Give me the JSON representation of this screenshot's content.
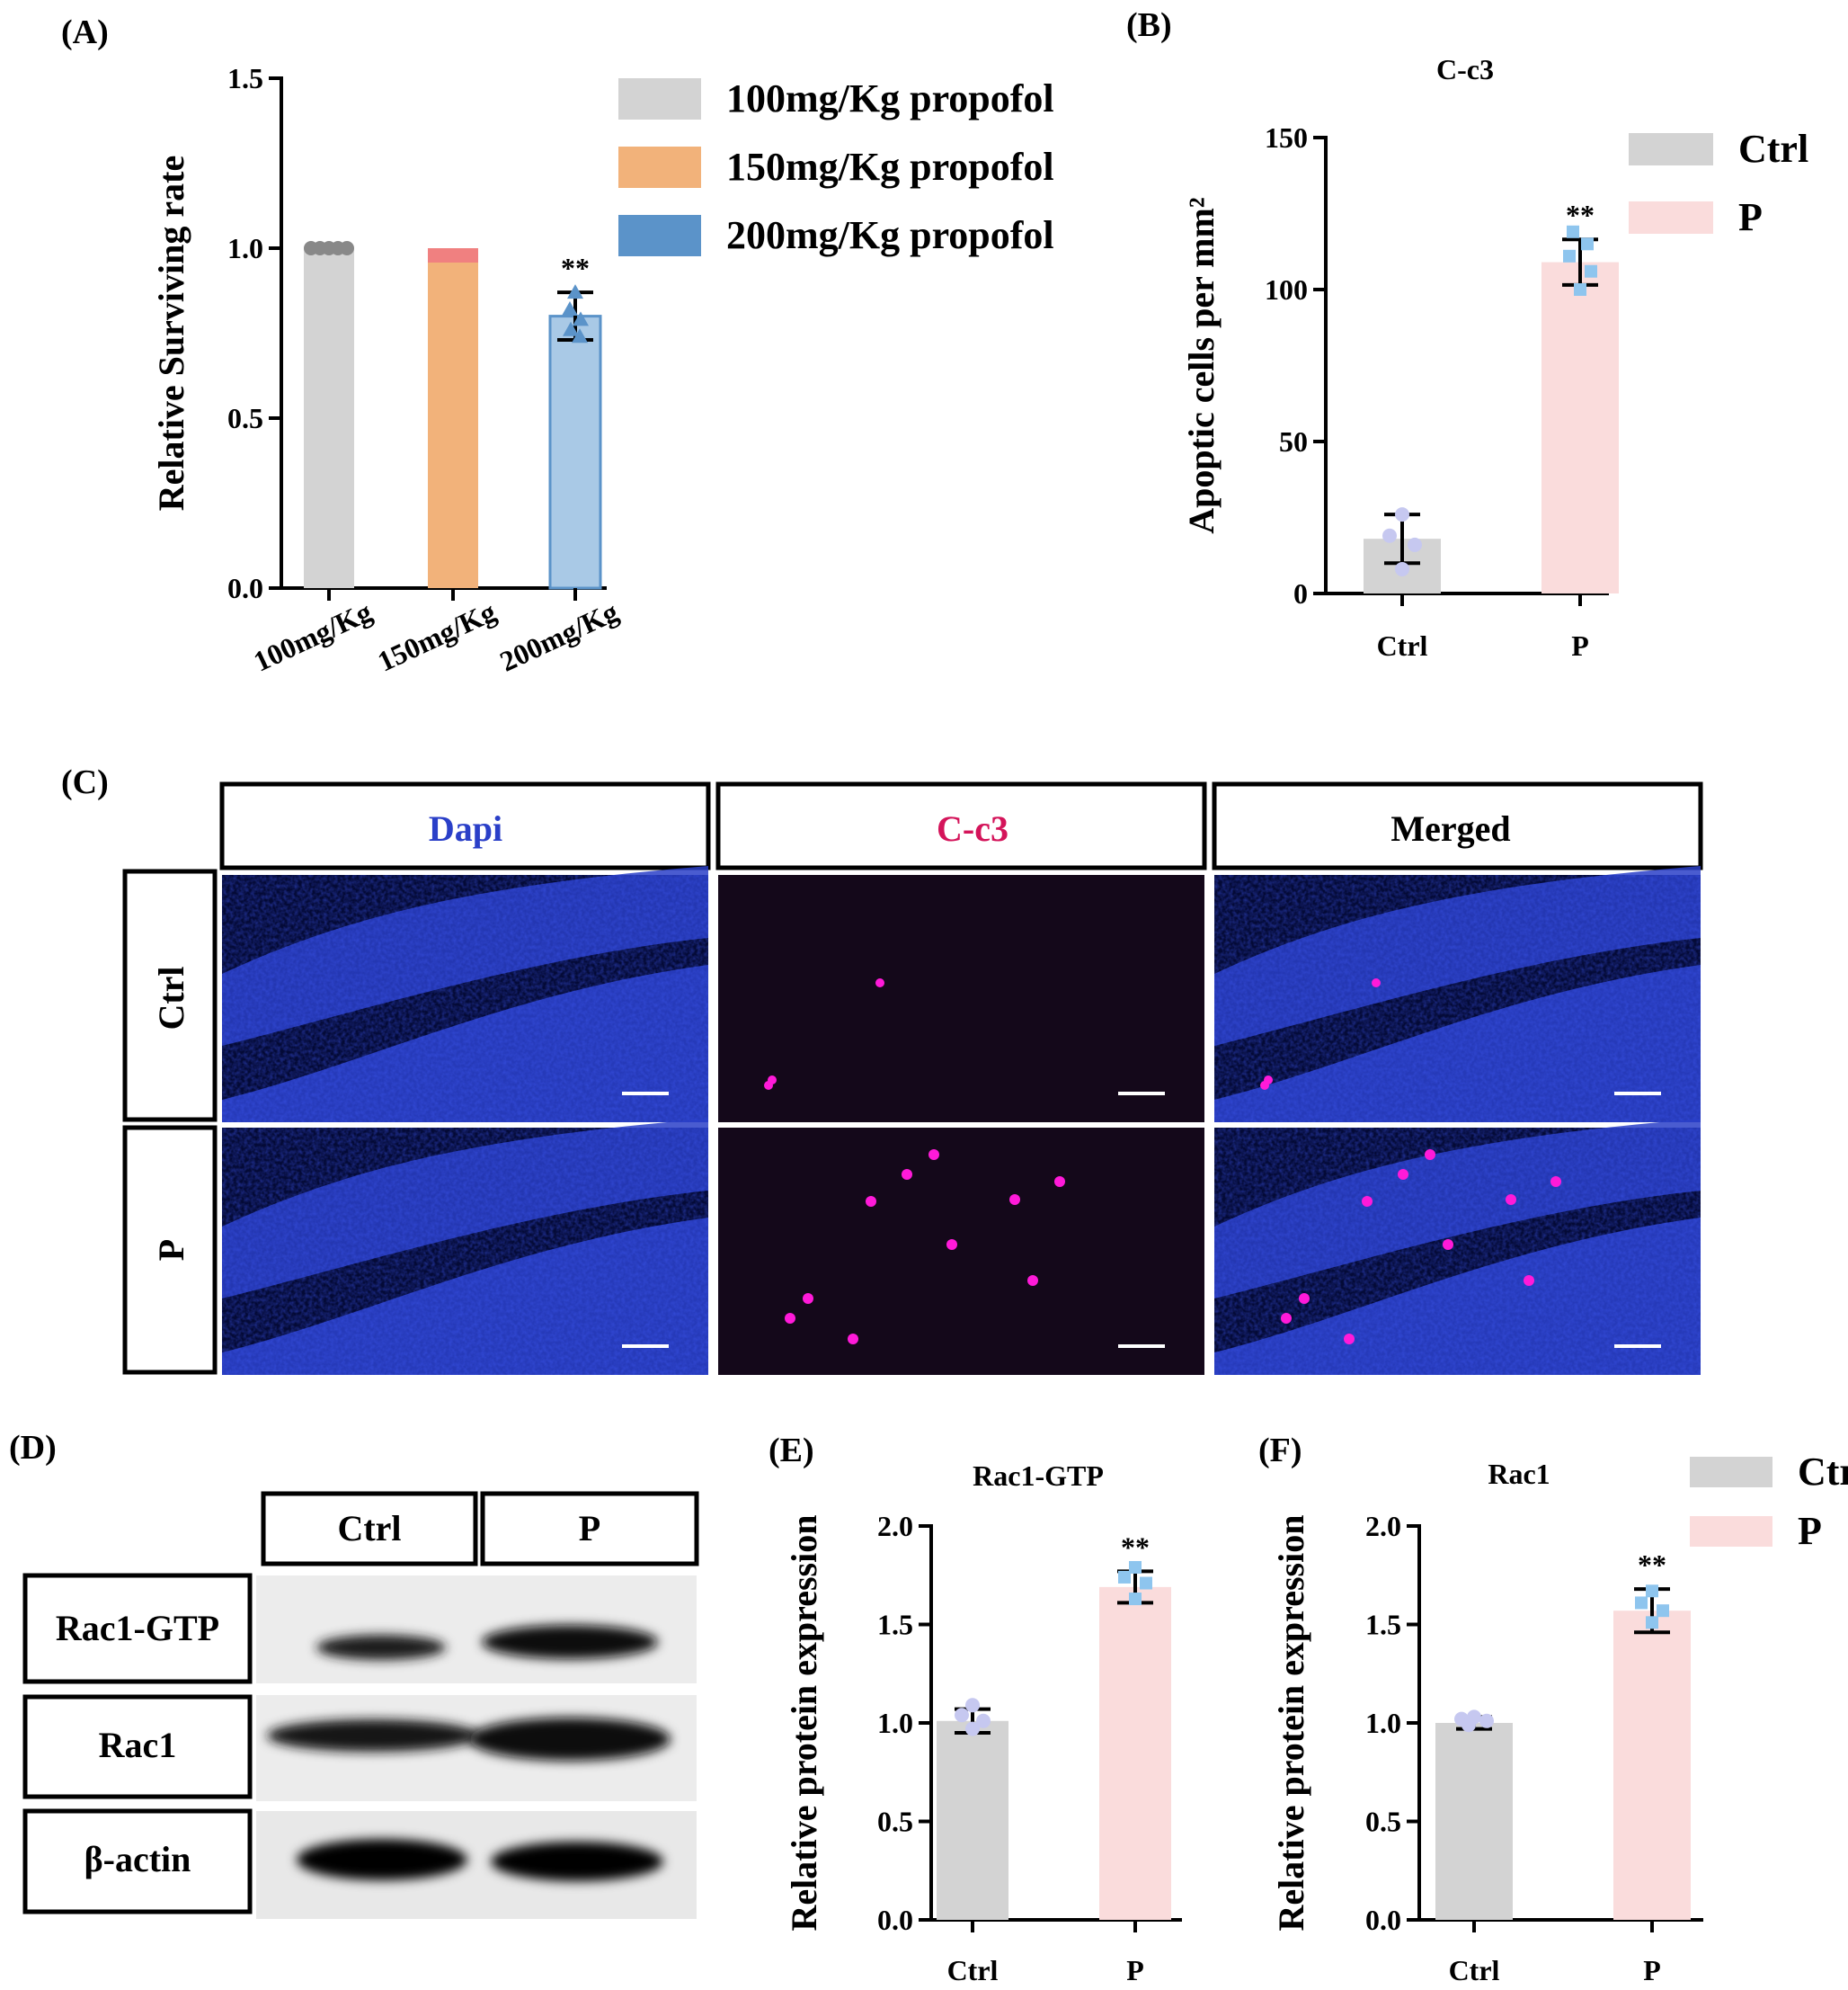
{
  "panels": {
    "A": "(A)",
    "B": "(B)",
    "C": "(C)",
    "D": "(D)",
    "E": "(E)",
    "F": "(F)"
  },
  "colors": {
    "gray": "#d3d3d3",
    "orange": "#f2b27a",
    "blue": "#a9c9e6",
    "blue_dark": "#5b93c9",
    "pink": "#fadcdc",
    "red_top": "#f08080",
    "dapi": "#2a3fc8",
    "cc3": "#d4145a"
  },
  "chart_data": [
    {
      "id": "A",
      "type": "bar",
      "title": "",
      "ylabel": "Relative Surviving rate",
      "xlabel": "",
      "ylim": [
        0,
        1.5
      ],
      "yticks": [
        "0.0",
        "0.5",
        "1.0",
        "1.5"
      ],
      "categories": [
        "100mg/Kg",
        "150mg/Kg",
        "200mg/Kg"
      ],
      "values": [
        1.0,
        1.0,
        0.8
      ],
      "error": [
        0,
        0,
        0.07
      ],
      "significance": [
        "",
        "",
        "**"
      ],
      "legend": [
        "100mg/Kg propofol",
        "150mg/Kg propofol",
        "200mg/Kg propofol"
      ],
      "legend_position": "top-right"
    },
    {
      "id": "B",
      "type": "bar",
      "title": "C-c3",
      "ylabel": "Apoptic cells per mm²",
      "ylim": [
        0,
        150
      ],
      "yticks": [
        "0",
        "50",
        "100",
        "150"
      ],
      "categories": [
        "Ctrl",
        "P"
      ],
      "values": [
        18,
        109
      ],
      "error": [
        8,
        7.5
      ],
      "significance": [
        "",
        "**"
      ],
      "legend": [
        "Ctrl",
        "P"
      ],
      "legend_position": "top-right"
    },
    {
      "id": "E",
      "type": "bar",
      "title": "Rac1-GTP",
      "ylabel": "Relative protein expression",
      "ylim": [
        0,
        2.0
      ],
      "yticks": [
        "0.0",
        "0.5",
        "1.0",
        "1.5",
        "2.0"
      ],
      "categories": [
        "Ctrl",
        "P"
      ],
      "values": [
        1.01,
        1.69
      ],
      "error": [
        0.06,
        0.08
      ],
      "significance": [
        "",
        "**"
      ]
    },
    {
      "id": "F",
      "type": "bar",
      "title": "Rac1",
      "ylabel": "Relative protein expression",
      "ylim": [
        0,
        2.0
      ],
      "yticks": [
        "0.0",
        "0.5",
        "1.0",
        "1.5",
        "2.0"
      ],
      "categories": [
        "Ctrl",
        "P"
      ],
      "values": [
        1.0,
        1.57
      ],
      "error": [
        0.03,
        0.11
      ],
      "significance": [
        "",
        "**"
      ],
      "legend": [
        "Ctrl",
        "P"
      ],
      "legend_position": "top-right"
    }
  ],
  "panel_c": {
    "columns": [
      "Dapi",
      "C-c3",
      "Merged"
    ],
    "rows": [
      "Ctrl",
      "P"
    ]
  },
  "panel_d": {
    "columns": [
      "Ctrl",
      "P"
    ],
    "rows": [
      "Rac1-GTP",
      "Rac1",
      "β-actin"
    ]
  }
}
